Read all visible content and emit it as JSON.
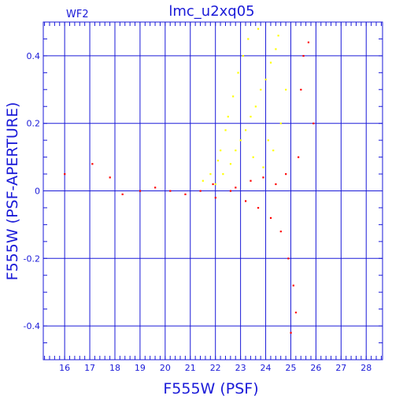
{
  "chart_data": {
    "type": "scatter",
    "title": "lmc_u2xq05",
    "subtitle": "WF2",
    "xlabel": "F555W (PSF)",
    "ylabel": "F555W (PSF-APERTURE)",
    "xlim": [
      15.15,
      28.65
    ],
    "ylim": [
      -0.5,
      0.5
    ],
    "x_ticks": [
      16,
      17,
      18,
      19,
      20,
      21,
      22,
      23,
      24,
      25,
      26,
      27,
      28
    ],
    "y_ticks": [
      -0.4,
      -0.2,
      0,
      0.2,
      0.4
    ],
    "y_tick_labels": [
      "-0.4",
      "-0.2",
      "0",
      "0.2",
      "0.4"
    ],
    "grid": true,
    "colors": {
      "axes": "#1a1ad8",
      "text": "#1a1ad8",
      "red_series": "#ff0000",
      "yellow_series": "#ffff00"
    },
    "series": [
      {
        "color": "#ffff00",
        "points": [
          [
            22.0,
            0.02
          ],
          [
            22.3,
            0.05
          ],
          [
            22.6,
            0.08
          ],
          [
            22.8,
            0.12
          ],
          [
            23.0,
            0.15
          ],
          [
            23.2,
            0.18
          ],
          [
            23.4,
            0.22
          ],
          [
            23.6,
            0.25
          ],
          [
            23.8,
            0.3
          ],
          [
            24.0,
            0.33
          ],
          [
            24.2,
            0.38
          ],
          [
            24.4,
            0.42
          ],
          [
            24.5,
            0.46
          ],
          [
            23.1,
            0.4
          ],
          [
            22.9,
            0.35
          ],
          [
            22.7,
            0.28
          ],
          [
            22.5,
            0.22
          ],
          [
            22.4,
            0.18
          ],
          [
            23.5,
            0.1
          ],
          [
            23.9,
            0.07
          ],
          [
            24.3,
            0.12
          ],
          [
            24.6,
            0.2
          ],
          [
            24.8,
            0.3
          ],
          [
            23.3,
            0.45
          ],
          [
            22.2,
            0.12
          ],
          [
            21.8,
            0.05
          ],
          [
            21.5,
            0.03
          ],
          [
            23.7,
            0.48
          ],
          [
            24.1,
            0.15
          ],
          [
            22.1,
            0.09
          ]
        ]
      },
      {
        "color": "#ff0000",
        "points": [
          [
            16.0,
            0.05
          ],
          [
            17.1,
            0.08
          ],
          [
            17.8,
            0.04
          ],
          [
            18.3,
            -0.01
          ],
          [
            19.0,
            0.0
          ],
          [
            19.6,
            0.01
          ],
          [
            20.2,
            0.0
          ],
          [
            20.8,
            -0.01
          ],
          [
            21.4,
            0.0
          ],
          [
            22.0,
            -0.02
          ],
          [
            22.6,
            0.0
          ],
          [
            23.2,
            -0.03
          ],
          [
            23.7,
            -0.05
          ],
          [
            24.2,
            -0.08
          ],
          [
            24.6,
            -0.12
          ],
          [
            24.9,
            -0.2
          ],
          [
            25.1,
            -0.28
          ],
          [
            25.2,
            -0.36
          ],
          [
            25.0,
            -0.42
          ],
          [
            25.4,
            0.3
          ],
          [
            25.5,
            0.4
          ],
          [
            25.7,
            0.44
          ],
          [
            25.9,
            0.2
          ],
          [
            25.3,
            0.1
          ],
          [
            24.8,
            0.05
          ],
          [
            24.4,
            0.02
          ],
          [
            23.9,
            0.04
          ],
          [
            23.4,
            0.03
          ],
          [
            22.8,
            0.01
          ],
          [
            21.9,
            0.02
          ]
        ]
      }
    ]
  }
}
